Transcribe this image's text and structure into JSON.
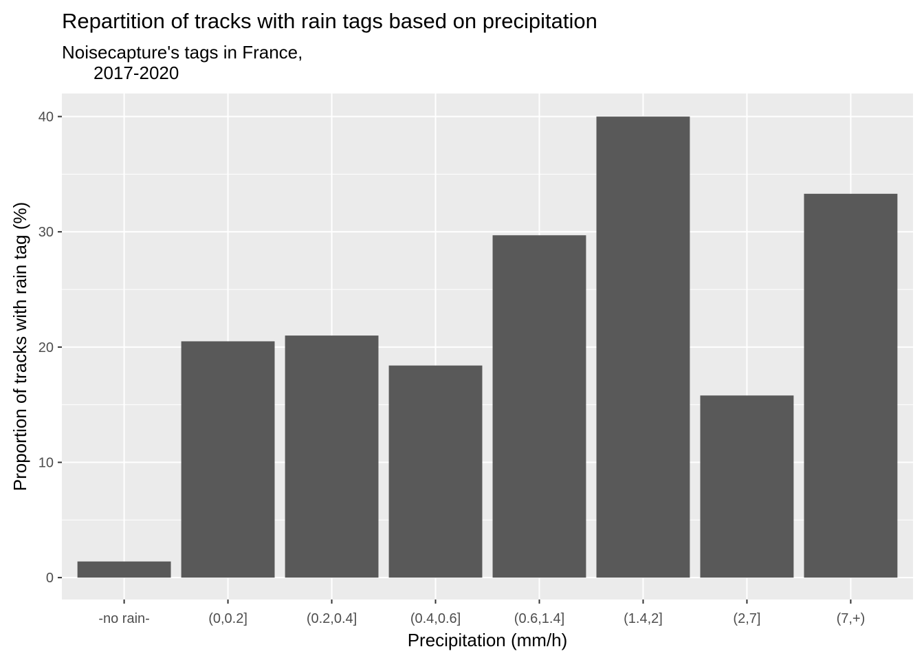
{
  "chart_data": {
    "type": "bar",
    "title": "Repartition of tracks with rain tags based on precipitation",
    "subtitle_lines": [
      "Noisecapture's tags in France,",
      "2017-2020"
    ],
    "xlabel": "Precipitation (mm/h)",
    "ylabel": "Proportion of tracks with rain tag (%)",
    "categories": [
      "-no rain-",
      "(0,0.2]",
      "(0.2,0.4]",
      "(0.4,0.6]",
      "(0.6,1.4]",
      "(1.4,2]",
      "(2,7]",
      "(7,+)"
    ],
    "values": [
      1.4,
      20.5,
      21.0,
      18.4,
      29.7,
      40.0,
      15.8,
      33.3
    ],
    "ylim": [
      -1.9,
      42.0
    ],
    "yticks": [
      0,
      10,
      20,
      30,
      40
    ],
    "grid": true,
    "legend": "none",
    "colors": {
      "panel": "#ebebeb",
      "grid": "#ffffff",
      "bar": "#595959"
    }
  }
}
